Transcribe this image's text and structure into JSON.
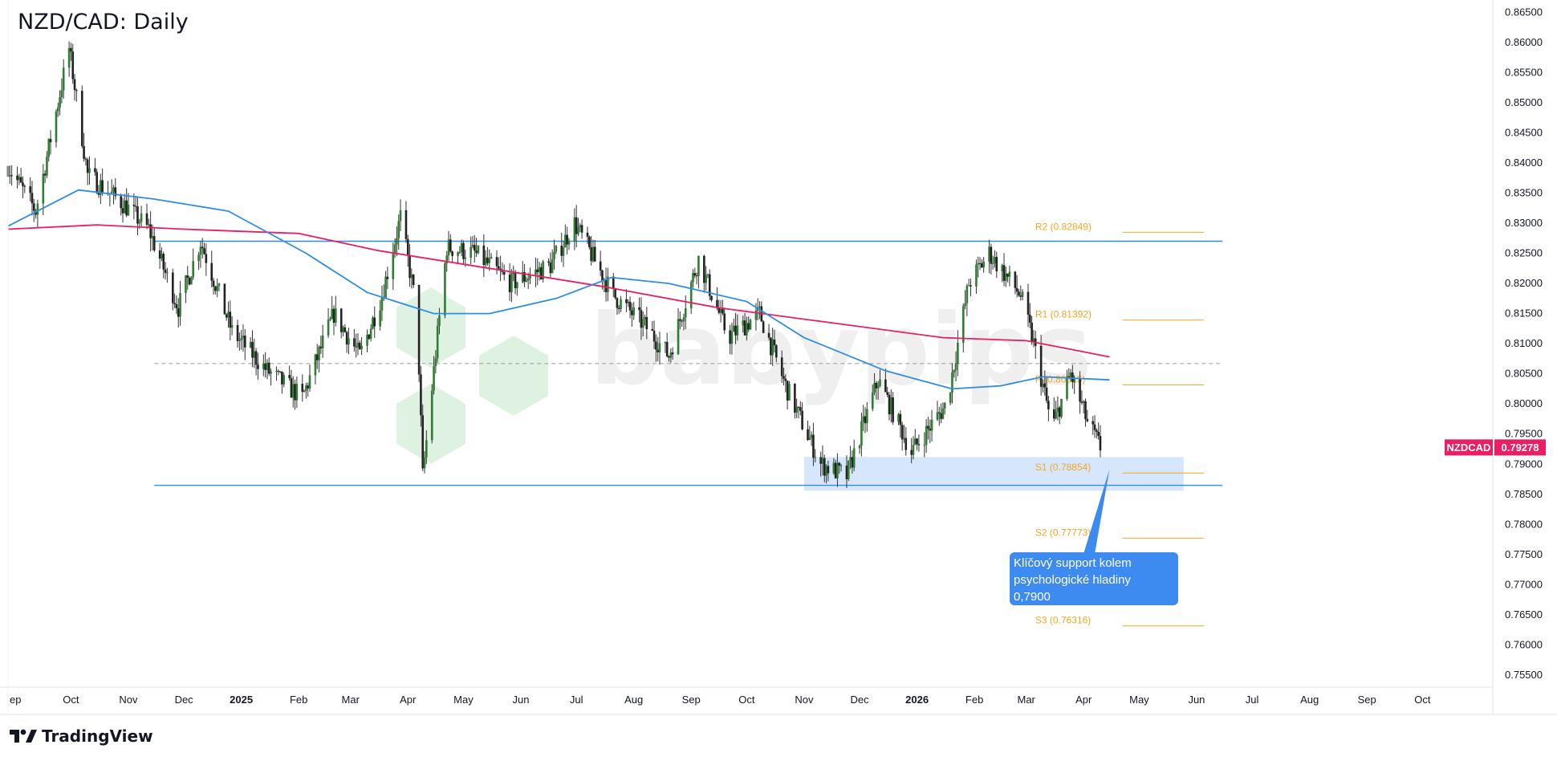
{
  "window": {
    "title": "NZD/CAD: Daily",
    "brand": "TradingView"
  },
  "symbol_badge": {
    "symbol": "NZDCAD",
    "last_price": "0.79278",
    "color": "#e91e63"
  },
  "annotation": {
    "text_lines": [
      "Klíčový support kolem",
      "psychologické hladiny",
      "0,7900"
    ],
    "color": "#3d8bf0"
  },
  "chart_data": {
    "type": "candlestick",
    "title": "NZD/CAD: Daily",
    "y_ticks": [
      "0.86500",
      "0.86000",
      "0.85500",
      "0.85000",
      "0.84500",
      "0.84000",
      "0.83500",
      "0.83000",
      "0.82500",
      "0.82000",
      "0.81500",
      "0.81000",
      "0.80500",
      "0.80000",
      "0.79500",
      "0.79000",
      "0.78500",
      "0.78000",
      "0.77500",
      "0.77000",
      "0.76500",
      "0.76000",
      "0.75500"
    ],
    "x_ticks": [
      {
        "label": "ep",
        "date": "2024-09-01",
        "bold": false
      },
      {
        "label": "Oct",
        "date": "2024-10-01",
        "bold": false
      },
      {
        "label": "Nov",
        "date": "2024-11-01",
        "bold": false
      },
      {
        "label": "Dec",
        "date": "2024-12-01",
        "bold": false
      },
      {
        "label": "2025",
        "date": "2025-01-01",
        "bold": true
      },
      {
        "label": "Feb",
        "date": "2025-02-01",
        "bold": false
      },
      {
        "label": "Mar",
        "date": "2025-03-01",
        "bold": false
      },
      {
        "label": "Apr",
        "date": "2025-04-01",
        "bold": false
      },
      {
        "label": "May",
        "date": "2025-05-01",
        "bold": false
      },
      {
        "label": "Jun",
        "date": "2025-06-01",
        "bold": false
      },
      {
        "label": "Jul",
        "date": "2025-07-01",
        "bold": false
      },
      {
        "label": "Aug",
        "date": "2025-08-01",
        "bold": false
      },
      {
        "label": "Sep",
        "date": "2025-09-01",
        "bold": false
      },
      {
        "label": "Oct",
        "date": "2025-10-01",
        "bold": false
      },
      {
        "label": "Nov",
        "date": "2025-11-01",
        "bold": false
      },
      {
        "label": "Dec",
        "date": "2025-12-01",
        "bold": false
      },
      {
        "label": "2026",
        "date": "2026-01-01",
        "bold": true
      },
      {
        "label": "Feb",
        "date": "2026-02-01",
        "bold": false
      },
      {
        "label": "Mar",
        "date": "2026-03-01",
        "bold": false
      },
      {
        "label": "Apr",
        "date": "2026-04-01",
        "bold": false
      },
      {
        "label": "May",
        "date": "2026-05-01",
        "bold": false
      },
      {
        "label": "Jun",
        "date": "2026-06-01",
        "bold": false
      },
      {
        "label": "Jul",
        "date": "2026-07-01",
        "bold": false
      },
      {
        "label": "Aug",
        "date": "2026-08-01",
        "bold": false
      },
      {
        "label": "Sep",
        "date": "2026-09-01",
        "bold": false
      },
      {
        "label": "Oct",
        "date": "2026-10-01",
        "bold": false
      }
    ],
    "x_range": [
      "2024-08-28",
      "2026-11-08"
    ],
    "y_range": [
      0.753,
      0.8665
    ],
    "close_path": [
      {
        "date": "2024-08-28",
        "value": 0.8395
      },
      {
        "date": "2024-09-12",
        "value": 0.832
      },
      {
        "date": "2024-09-30",
        "value": 0.859
      },
      {
        "date": "2024-10-10",
        "value": 0.838
      },
      {
        "date": "2024-10-30",
        "value": 0.833
      },
      {
        "date": "2024-11-12",
        "value": 0.829
      },
      {
        "date": "2024-11-28",
        "value": 0.816
      },
      {
        "date": "2024-12-10",
        "value": 0.827
      },
      {
        "date": "2024-12-27",
        "value": 0.812
      },
      {
        "date": "2025-01-15",
        "value": 0.8055
      },
      {
        "date": "2025-02-03",
        "value": 0.801
      },
      {
        "date": "2025-02-20",
        "value": 0.815
      },
      {
        "date": "2025-03-06",
        "value": 0.808
      },
      {
        "date": "2025-03-18",
        "value": 0.818
      },
      {
        "date": "2025-03-28",
        "value": 0.831
      },
      {
        "date": "2025-04-06",
        "value": 0.815
      },
      {
        "date": "2025-04-09",
        "value": 0.788
      },
      {
        "date": "2025-04-22",
        "value": 0.826
      },
      {
        "date": "2025-05-07",
        "value": 0.825
      },
      {
        "date": "2025-05-27",
        "value": 0.82
      },
      {
        "date": "2025-06-17",
        "value": 0.823
      },
      {
        "date": "2025-06-30",
        "value": 0.83
      },
      {
        "date": "2025-07-21",
        "value": 0.818
      },
      {
        "date": "2025-08-07",
        "value": 0.813
      },
      {
        "date": "2025-08-20",
        "value": 0.808
      },
      {
        "date": "2025-09-05",
        "value": 0.824
      },
      {
        "date": "2025-09-21",
        "value": 0.811
      },
      {
        "date": "2025-10-08",
        "value": 0.815
      },
      {
        "date": "2025-10-22",
        "value": 0.803
      },
      {
        "date": "2025-11-10",
        "value": 0.79
      },
      {
        "date": "2025-11-24",
        "value": 0.788
      },
      {
        "date": "2025-12-11",
        "value": 0.804
      },
      {
        "date": "2025-12-29",
        "value": 0.792
      },
      {
        "date": "2026-01-17",
        "value": 0.8
      },
      {
        "date": "2026-01-29",
        "value": 0.82
      },
      {
        "date": "2026-02-09",
        "value": 0.825
      },
      {
        "date": "2026-02-26",
        "value": 0.818
      },
      {
        "date": "2026-03-05",
        "value": 0.81
      },
      {
        "date": "2026-03-15",
        "value": 0.796
      },
      {
        "date": "2026-03-25",
        "value": 0.805
      },
      {
        "date": "2026-04-03",
        "value": 0.797
      },
      {
        "date": "2026-04-10",
        "value": 0.7928
      }
    ],
    "series": [
      {
        "name": "",
        "type": "moving-average",
        "color": "#e91e63",
        "points": [
          {
            "date": "2024-08-28",
            "value": 0.829
          },
          {
            "date": "2024-10-15",
            "value": 0.8297
          },
          {
            "date": "2024-12-01",
            "value": 0.829
          },
          {
            "date": "2025-02-01",
            "value": 0.8283
          },
          {
            "date": "2025-03-15",
            "value": 0.8255
          },
          {
            "date": "2025-05-15",
            "value": 0.8225
          },
          {
            "date": "2025-07-15",
            "value": 0.8195
          },
          {
            "date": "2025-09-15",
            "value": 0.816
          },
          {
            "date": "2025-11-15",
            "value": 0.8135
          },
          {
            "date": "2026-01-15",
            "value": 0.811
          },
          {
            "date": "2026-03-01",
            "value": 0.8105
          },
          {
            "date": "2026-04-15",
            "value": 0.8078
          }
        ]
      },
      {
        "name": "",
        "type": "moving-average",
        "color": "#2f8de4",
        "points": [
          {
            "date": "2024-08-28",
            "value": 0.8295
          },
          {
            "date": "2024-10-05",
            "value": 0.8355
          },
          {
            "date": "2024-11-15",
            "value": 0.834
          },
          {
            "date": "2024-12-25",
            "value": 0.832
          },
          {
            "date": "2025-02-05",
            "value": 0.825
          },
          {
            "date": "2025-03-10",
            "value": 0.8185
          },
          {
            "date": "2025-04-15",
            "value": 0.815
          },
          {
            "date": "2025-05-15",
            "value": 0.815
          },
          {
            "date": "2025-06-20",
            "value": 0.8175
          },
          {
            "date": "2025-07-20",
            "value": 0.821
          },
          {
            "date": "2025-08-20",
            "value": 0.82
          },
          {
            "date": "2025-10-01",
            "value": 0.817
          },
          {
            "date": "2025-11-01",
            "value": 0.811
          },
          {
            "date": "2025-12-15",
            "value": 0.8055
          },
          {
            "date": "2026-01-20",
            "value": 0.8025
          },
          {
            "date": "2026-02-15",
            "value": 0.803
          },
          {
            "date": "2026-03-10",
            "value": 0.8045
          },
          {
            "date": "2026-04-15",
            "value": 0.804
          }
        ]
      }
    ],
    "horizontal_lines": [
      {
        "value": 0.827,
        "from": "2024-11-15",
        "to": "2026-06-15",
        "color": "#2f8de4",
        "style": "solid"
      },
      {
        "value": 0.7865,
        "from": "2024-11-15",
        "to": "2026-06-15",
        "color": "#2f8de4",
        "style": "solid"
      },
      {
        "value": 0.8067,
        "from": "2024-11-15",
        "to": "2026-06-15",
        "color": "#999999",
        "style": "dashed"
      }
    ],
    "support_zone": {
      "from": "2025-11-01",
      "to": "2026-05-25",
      "high": 0.7912,
      "low": 0.7856,
      "color": "#cfe3fb"
    },
    "pivot_levels": [
      {
        "label": "R2 (0.82849)",
        "value": 0.82849
      },
      {
        "label": "R1 (0.81392)",
        "value": 0.81392
      },
      {
        "label": "P (0.80315)",
        "value": 0.80315
      },
      {
        "label": "S1 (0.78854)",
        "value": 0.78854
      },
      {
        "label": "S2 (0.77773)",
        "value": 0.77773
      },
      {
        "label": "S3 (0.76316)",
        "value": 0.76316
      }
    ],
    "pivot_color": "#f5a623",
    "up_color": "#26a69a",
    "down_color": "#ef5350",
    "current_value": 0.79278,
    "grid": false,
    "legend": "none"
  }
}
